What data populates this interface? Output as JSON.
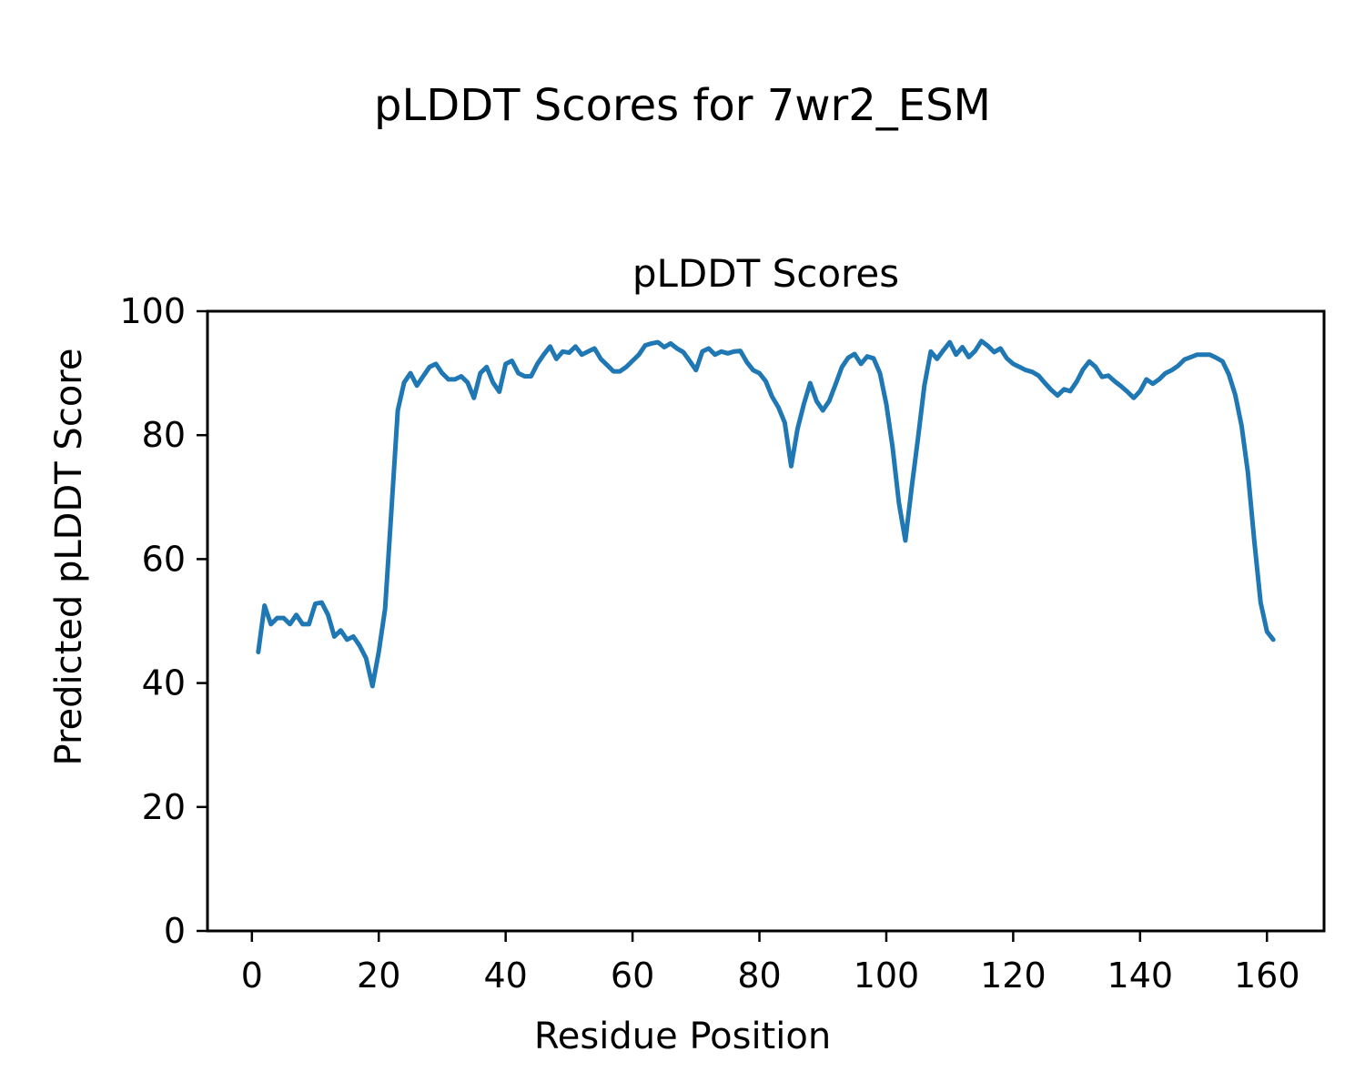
{
  "figure": {
    "suptitle": "pLDDT Scores for 7wr2_ESM",
    "background": "#ffffff"
  },
  "chart_data": {
    "type": "line",
    "title": "pLDDT Scores",
    "xlabel": "Residue Position",
    "ylabel": "Predicted pLDDT Score",
    "xlim": [
      -7,
      169
    ],
    "ylim": [
      0,
      100
    ],
    "x_ticks": [
      0,
      20,
      40,
      60,
      80,
      100,
      120,
      140,
      160
    ],
    "y_ticks": [
      0,
      20,
      40,
      60,
      80,
      100
    ],
    "grid": false,
    "legend": "none",
    "line_color": "#1f77b4",
    "axis_color": "#000000",
    "series": [
      {
        "name": "pLDDT",
        "x_start": 1,
        "values": [
          45,
          52.5,
          49.5,
          50.5,
          50.5,
          49.5,
          51,
          49.5,
          49.5,
          52.8,
          53,
          51,
          47.5,
          48.5,
          47,
          47.5,
          46,
          44,
          39.5,
          45,
          52,
          68,
          84,
          88.5,
          90,
          88,
          89.5,
          91,
          91.5,
          90,
          89,
          89,
          89.5,
          88.5,
          86,
          90,
          91,
          88.5,
          87,
          91.5,
          92,
          90,
          89.5,
          89.5,
          91.5,
          93,
          94.3,
          92.3,
          93.5,
          93.3,
          94.3,
          93,
          93.5,
          94,
          92.3,
          91.3,
          90.3,
          90.3,
          91,
          92,
          93,
          94.5,
          94.8,
          95,
          94.2,
          94.8,
          94,
          93.4,
          92,
          90.5,
          93.5,
          94,
          93,
          93.5,
          93.2,
          93.5,
          93.6,
          91.8,
          90.5,
          90,
          88.7,
          86.2,
          84.5,
          82,
          75,
          81,
          85,
          88.4,
          85.5,
          84,
          85.5,
          88.2,
          91,
          92.5,
          93.1,
          91.5,
          92.7,
          92.4,
          90,
          85,
          78,
          69,
          63,
          71.5,
          79.5,
          88,
          93.5,
          92.3,
          93.7,
          95,
          93,
          94.2,
          92.6,
          93.6,
          95.2,
          94.4,
          93.4,
          94,
          92.4,
          91.5,
          91,
          90.5,
          90.2,
          89.6,
          88.4,
          87.3,
          86.4,
          87.4,
          87.1,
          88.6,
          90.6,
          91.9,
          91,
          89.4,
          89.6,
          88.7,
          87.9,
          87,
          86,
          87.1,
          89,
          88.3,
          89,
          90,
          90.5,
          91.2,
          92.2,
          92.6,
          93,
          93,
          93,
          92.5,
          91.9,
          89.8,
          86.5,
          81.5,
          74,
          63,
          53,
          48.3,
          47
        ]
      }
    ]
  }
}
